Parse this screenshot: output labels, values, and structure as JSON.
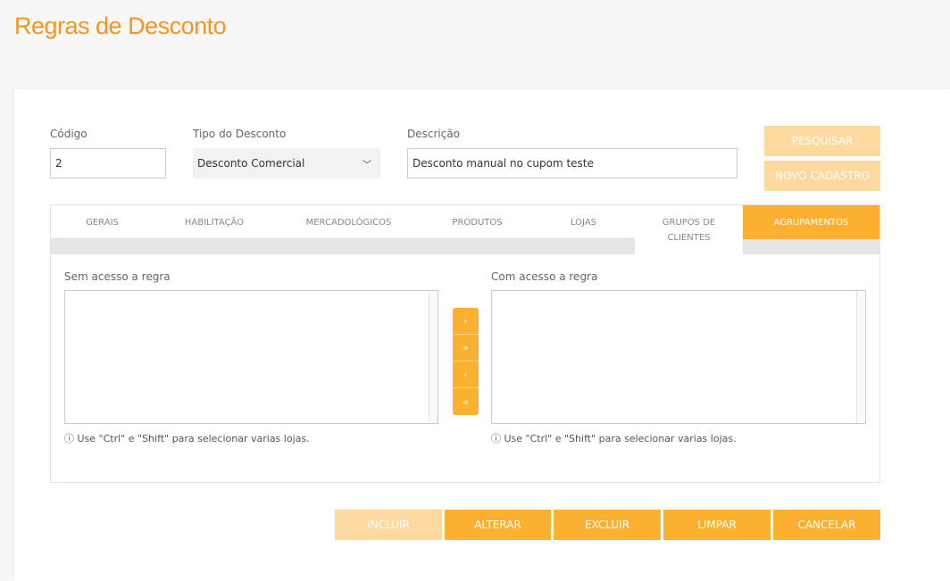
{
  "page": {
    "title": "Regras de Desconto"
  },
  "form": {
    "codigo": {
      "label": "Código",
      "value": "2"
    },
    "tipo": {
      "label": "Tipo do Desconto",
      "value": "Desconto Comercial"
    },
    "descricao": {
      "label": "Descrição",
      "value": "Desconto manual no cupom teste"
    },
    "pesquisar": "PESQUISAR",
    "novo": "NOVO CADASTRO"
  },
  "tabs": [
    {
      "label": "GERAIS"
    },
    {
      "label": "HABILITAÇÃO"
    },
    {
      "label": "MERCADOLÓGICOS"
    },
    {
      "label": "PRODUTOS"
    },
    {
      "label": "LOJAS"
    },
    {
      "label": "GRUPOS DE CLIENTES"
    },
    {
      "label": "AGRUPAMENTOS",
      "active": true
    }
  ],
  "lists": {
    "left": {
      "label": "Sem acesso a regra",
      "hint": "Use \"Ctrl\" e \"Shift\" para selecionar varias lojas."
    },
    "right": {
      "label": "Com acesso a regra",
      "hint": "Use \"Ctrl\" e \"Shift\" para selecionar varias lojas."
    },
    "move": [
      "›",
      "»",
      "‹",
      "«"
    ]
  },
  "actions": {
    "incluir": "INCLUIR",
    "alterar": "ALTERAR",
    "excluir": "EXCLUIR",
    "limpar": "LIMPAR",
    "cancelar": "CANCELAR"
  },
  "colors": {
    "accent": "#fbb12f",
    "accent_light": "#fdd9a0",
    "title": "#f7931e"
  }
}
